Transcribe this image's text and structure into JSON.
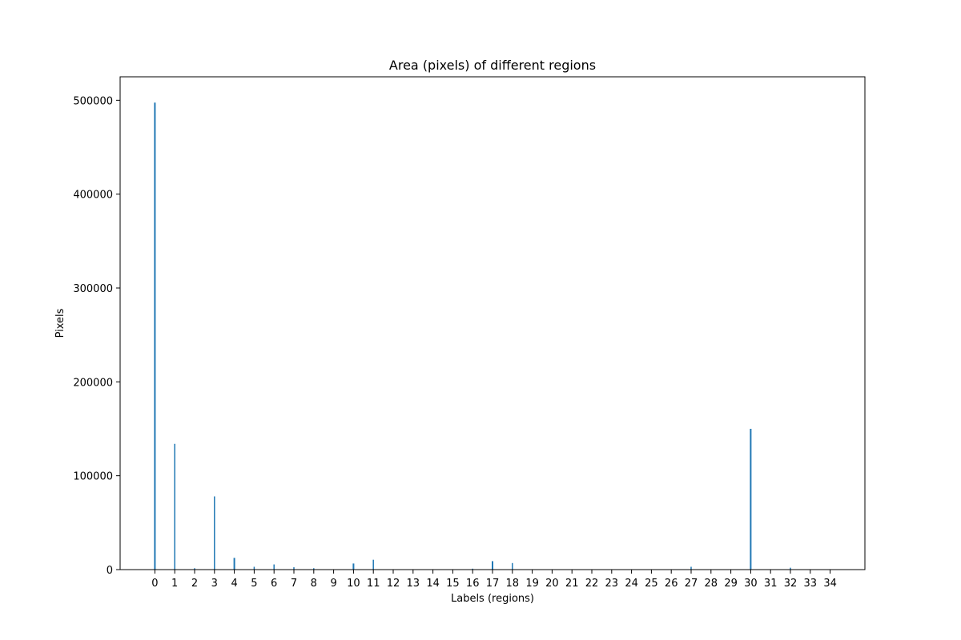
{
  "chart_data": {
    "type": "bar",
    "title": "Area (pixels) of different regions",
    "xlabel": "Labels (regions)",
    "ylabel": "Pixels",
    "ylim": [
      0,
      525000
    ],
    "xlim": [
      -1.75,
      35.75
    ],
    "grid": false,
    "categories": [
      "0",
      "1",
      "2",
      "3",
      "4",
      "5",
      "6",
      "7",
      "8",
      "9",
      "10",
      "11",
      "12",
      "13",
      "14",
      "15",
      "16",
      "17",
      "18",
      "19",
      "20",
      "21",
      "22",
      "23",
      "24",
      "25",
      "26",
      "27",
      "28",
      "29",
      "30",
      "31",
      "32",
      "33",
      "34"
    ],
    "yticks": [
      0,
      100000,
      200000,
      300000,
      400000,
      500000
    ],
    "bars": [
      {
        "x": 0,
        "value": 497500,
        "width": 0.08
      },
      {
        "x": 1,
        "value": 134000,
        "width": 0.06
      },
      {
        "x": 2,
        "value": 1500,
        "width": 0.06
      },
      {
        "x": 3,
        "value": 78000,
        "width": 0.06
      },
      {
        "x": 4,
        "value": 12500,
        "width": 0.08
      },
      {
        "x": 5,
        "value": 3000,
        "width": 0.06
      },
      {
        "x": 6,
        "value": 5500,
        "width": 0.06
      },
      {
        "x": 7,
        "value": 2500,
        "width": 0.06
      },
      {
        "x": 8,
        "value": 1500,
        "width": 0.06
      },
      {
        "x": 10,
        "value": 6500,
        "width": 0.08
      },
      {
        "x": 11,
        "value": 10500,
        "width": 0.06
      },
      {
        "x": 16,
        "value": 1000,
        "width": 0.06
      },
      {
        "x": 17,
        "value": 9000,
        "width": 0.08
      },
      {
        "x": 18,
        "value": 7000,
        "width": 0.06
      },
      {
        "x": 27,
        "value": 3000,
        "width": 0.06
      },
      {
        "x": 30,
        "value": 150000,
        "width": 0.08
      },
      {
        "x": 32,
        "value": 2000,
        "width": 0.06
      }
    ],
    "bar_color": "#1f77b4"
  }
}
